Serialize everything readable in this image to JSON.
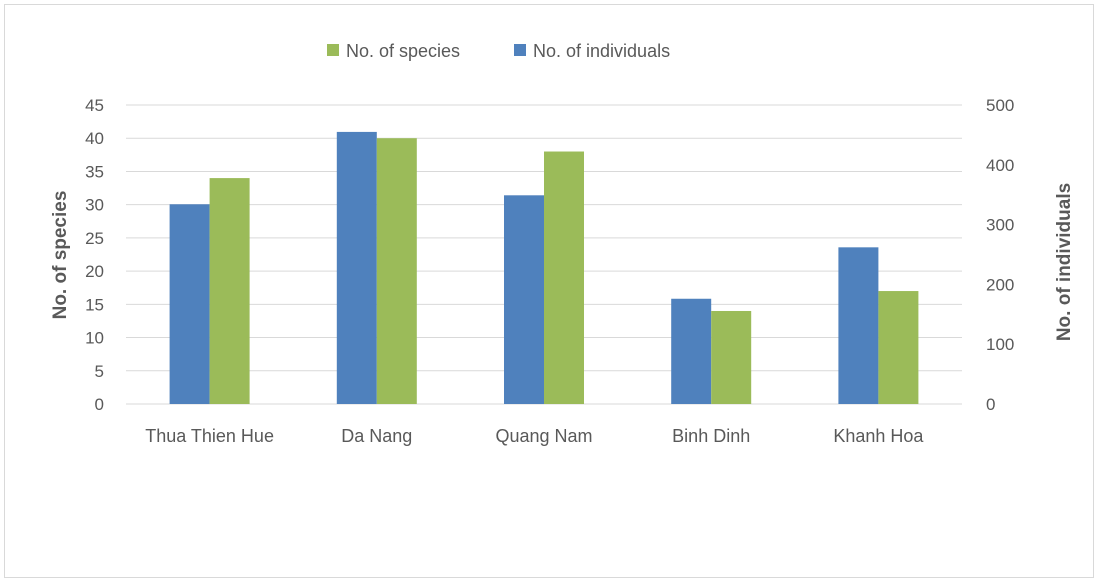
{
  "chart_data": {
    "type": "bar",
    "categories": [
      "Thua Thien Hue",
      "Da Nang",
      "Quang Nam",
      "Binh Dinh",
      "Khanh Hoa"
    ],
    "series": [
      {
        "name": "No. of individuals",
        "axis": "right",
        "color": "#4f81bd",
        "values": [
          334,
          455,
          349,
          176,
          262
        ]
      },
      {
        "name": "No. of species",
        "axis": "left",
        "color": "#9bbb59",
        "values": [
          34,
          40,
          38,
          14,
          17
        ]
      }
    ],
    "legend": {
      "position": "top",
      "order": [
        "No. of species",
        "No. of individuals"
      ]
    },
    "ylabel": "No. of species",
    "y2label": "No. of individuals",
    "ylim": [
      0,
      45
    ],
    "yticks": [
      0,
      5,
      10,
      15,
      20,
      25,
      30,
      35,
      40,
      45
    ],
    "y2lim": [
      0,
      500
    ],
    "y2ticks": [
      0,
      100,
      200,
      300,
      400,
      500
    ],
    "grid": true
  }
}
